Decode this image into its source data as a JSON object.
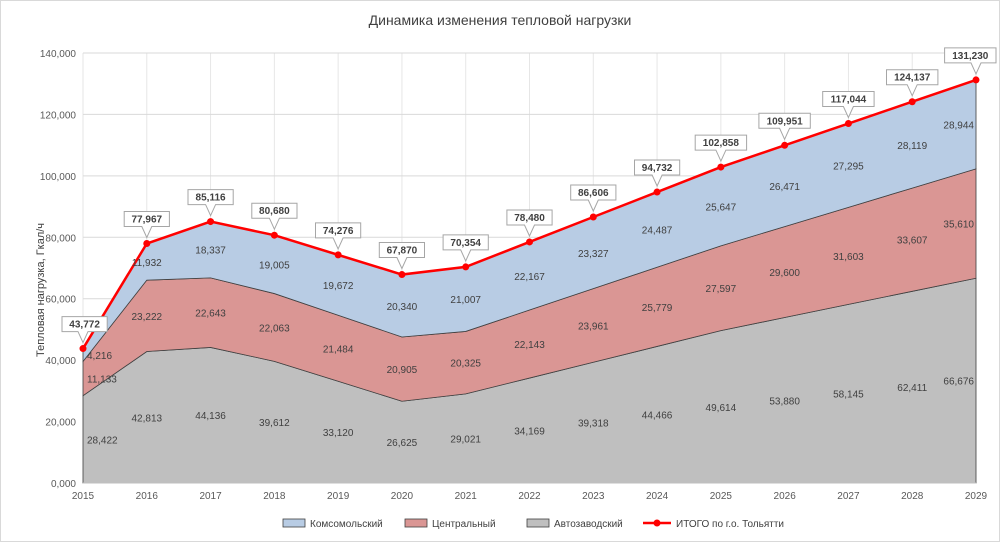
{
  "chart_data": {
    "type": "area",
    "title": "Динамика изменения тепловой нагрузки",
    "xlabel": "",
    "ylabel": "Тепловая нагрузка, Гкал/ч",
    "ylim": [
      0,
      140000
    ],
    "yticks": [
      "0,000",
      "20,000",
      "40,000",
      "60,000",
      "80,000",
      "100,000",
      "120,000",
      "140,000"
    ],
    "grid": true,
    "legend_position": "bottom",
    "categories": [
      "2015",
      "2016",
      "2017",
      "2018",
      "2019",
      "2020",
      "2021",
      "2022",
      "2023",
      "2024",
      "2025",
      "2026",
      "2027",
      "2028",
      "2029"
    ],
    "series": [
      {
        "name": "Автозаводский",
        "kind": "stacked-area",
        "color": "#bfbfbf",
        "values": [
          28422,
          42813,
          44136,
          39612,
          33120,
          26625,
          29021,
          34169,
          39318,
          44466,
          49614,
          53880,
          58145,
          62411,
          66676
        ],
        "labels": [
          "28,422",
          "42,813",
          "44,136",
          "39,612",
          "33,120",
          "26,625",
          "29,021",
          "34,169",
          "39,318",
          "44,466",
          "49,614",
          "53,880",
          "58,145",
          "62,411",
          "66,676"
        ]
      },
      {
        "name": "Центральный",
        "kind": "stacked-area",
        "color": "#da9694",
        "values": [
          11133,
          23222,
          22643,
          22063,
          21484,
          20905,
          20325,
          22143,
          23961,
          25779,
          27597,
          29600,
          31603,
          33607,
          35610
        ],
        "labels": [
          "11,133",
          "23,222",
          "22,643",
          "22,063",
          "21,484",
          "20,905",
          "20,325",
          "22,143",
          "23,961",
          "25,779",
          "27,597",
          "29,600",
          "31,603",
          "33,607",
          "35,610"
        ]
      },
      {
        "name": "Комсомольский",
        "kind": "stacked-area",
        "color": "#b8cce4",
        "values": [
          4216,
          11932,
          18337,
          19005,
          19672,
          20340,
          21007,
          22167,
          23327,
          24487,
          25647,
          26471,
          27295,
          28119,
          28944
        ],
        "labels": [
          "4,216",
          "11,932",
          "18,337",
          "19,005",
          "19,672",
          "20,340",
          "21,007",
          "22,167",
          "23,327",
          "24,487",
          "25,647",
          "26,471",
          "27,295",
          "28,119",
          "28,944"
        ]
      },
      {
        "name": "ИТОГО по г.о. Тольятти",
        "kind": "line",
        "color": "#ff0000",
        "values": [
          43772,
          77967,
          85116,
          80680,
          74276,
          67870,
          70354,
          78480,
          86606,
          94732,
          102858,
          109951,
          117044,
          124137,
          131230
        ],
        "labels": [
          "43,772",
          "77,967",
          "85,116",
          "80,680",
          "74,276",
          "67,870",
          "70,354",
          "78,480",
          "86,606",
          "94,732",
          "102,858",
          "109,951",
          "117,044",
          "124,137",
          "131,230"
        ]
      }
    ],
    "legend": [
      {
        "label": "Комсомольский",
        "color": "#b8cce4",
        "kind": "area"
      },
      {
        "label": "Центральный",
        "color": "#da9694",
        "kind": "area"
      },
      {
        "label": "Автозаводский",
        "color": "#bfbfbf",
        "kind": "area"
      },
      {
        "label": "ИТОГО по г.о. Тольятти",
        "color": "#ff0000",
        "kind": "line"
      }
    ]
  }
}
